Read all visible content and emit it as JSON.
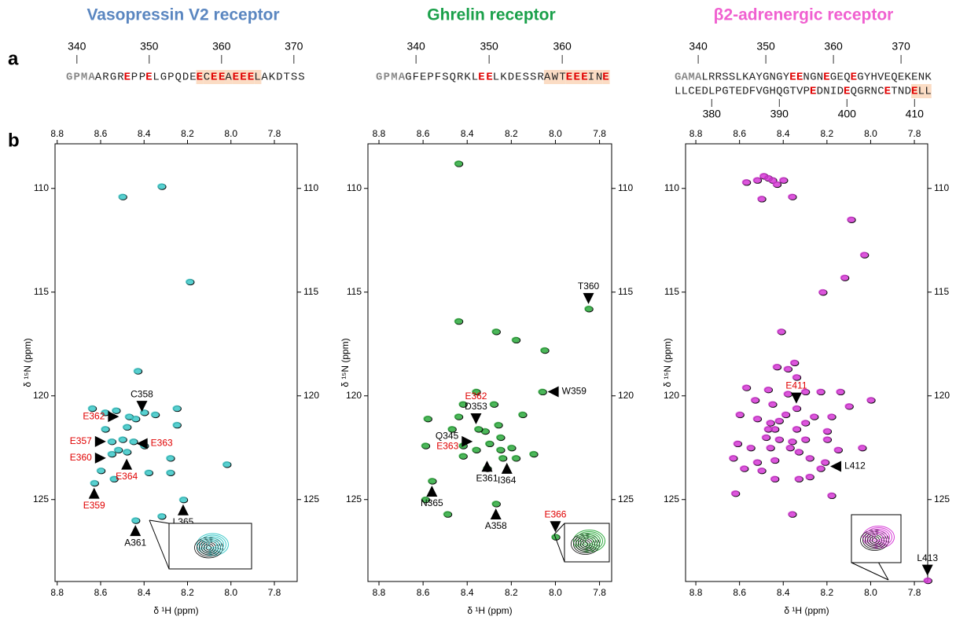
{
  "panel_labels": [
    "a",
    "b"
  ],
  "chart_data": [
    {
      "type": "scatter",
      "title": "Vasopressin V2 receptor",
      "title_color": "#5a86c0",
      "color": "#3cc8c8",
      "sequence": {
        "lines": [
          {
            "axis_side": "top",
            "xlim": [
              339,
              371
            ],
            "xticks": [
              340,
              350,
              360,
              370
            ],
            "segments": [
              {
                "text": "GPMA",
                "style": "tag",
                "highlight": false
              },
              {
                "text": "ARGR",
                "style": "plain",
                "highlight": false
              },
              {
                "text": "E",
                "style": "glu",
                "highlight": false
              },
              {
                "text": "PP",
                "style": "plain",
                "highlight": false
              },
              {
                "text": "E",
                "style": "glu",
                "highlight": false
              },
              {
                "text": "LGPQDE",
                "style": "plain",
                "highlight": false
              },
              {
                "text": "E",
                "style": "glu",
                "highlight": true
              },
              {
                "text": "C",
                "style": "plain",
                "highlight": true
              },
              {
                "text": "EE",
                "style": "glu",
                "highlight": true
              },
              {
                "text": "A",
                "style": "plain",
                "highlight": true
              },
              {
                "text": "EEE",
                "style": "glu",
                "highlight": true
              },
              {
                "text": "L",
                "style": "plain",
                "highlight": true
              },
              {
                "text": "AKDTSS",
                "style": "plain",
                "highlight": false
              }
            ]
          }
        ]
      },
      "xlabel": "δ ¹H (ppm)",
      "ylabel": "δ ¹⁵N (ppm)",
      "xreverse": true,
      "yreverse": true,
      "xlim": [
        7.695,
        8.81
      ],
      "ylim": [
        107.85,
        128.95
      ],
      "xticks": [
        8.8,
        8.6,
        8.4,
        8.2,
        {
          "value": 8,
          "label": "8.0"
        },
        7.8
      ],
      "yticks": [
        110,
        115,
        120,
        125
      ],
      "x": [
        8.5,
        8.32,
        8.19,
        8.43,
        8.64,
        8.58,
        8.53,
        8.47,
        8.44,
        8.4,
        8.35,
        8.25,
        8.58,
        8.48,
        8.25,
        8.55,
        8.5,
        8.45,
        8.52,
        8.48,
        8.55,
        8.4,
        8.28,
        8.6,
        8.38,
        8.28,
        8.02,
        8.63,
        8.54,
        8.22,
        8.32,
        8.44
      ],
      "y": [
        110.4,
        109.9,
        114.5,
        118.8,
        120.6,
        120.8,
        120.7,
        121.0,
        121.1,
        120.8,
        120.9,
        120.6,
        121.6,
        121.5,
        121.4,
        122.2,
        122.1,
        122.2,
        122.6,
        122.7,
        122.8,
        122.4,
        123.0,
        123.6,
        123.7,
        123.7,
        123.3,
        124.2,
        124.0,
        125.0,
        125.8,
        126.0
      ],
      "annotations": [
        {
          "x": 8.49,
          "y": 121.0,
          "dir": "right",
          "labels": [
            {
              "text": "E362",
              "color": "red"
            }
          ]
        },
        {
          "x": 8.41,
          "y": 121.0,
          "dir": "down",
          "labels": [
            {
              "text": "C358",
              "color": "black"
            }
          ]
        },
        {
          "x": 8.55,
          "y": 122.2,
          "dir": "right",
          "labels": [
            {
              "text": "E357",
              "color": "red"
            }
          ]
        },
        {
          "x": 8.46,
          "y": 122.3,
          "dir": "left",
          "labels": [
            {
              "text": "E363",
              "color": "red"
            }
          ]
        },
        {
          "x": 8.55,
          "y": 123.0,
          "dir": "right",
          "labels": [
            {
              "text": "E360",
              "color": "red"
            }
          ]
        },
        {
          "x": 8.48,
          "y": 122.8,
          "dir": "up",
          "labels": [
            {
              "text": "E364",
              "color": "red"
            }
          ]
        },
        {
          "x": 8.63,
          "y": 124.2,
          "dir": "up",
          "labels": [
            {
              "text": "E359",
              "color": "red"
            }
          ]
        },
        {
          "x": 8.22,
          "y": 125.0,
          "dir": "up",
          "labels": [
            {
              "text": "L365",
              "color": "black"
            }
          ]
        },
        {
          "x": 8.44,
          "y": 126.0,
          "dir": "up",
          "labels": [
            {
              "text": "A361",
              "color": "black"
            }
          ]
        }
      ]
    },
    {
      "type": "scatter",
      "title": "Ghrelin receptor",
      "title_color": "#1aa04a",
      "color": "#2eaa3e",
      "sequence": {
        "lines": [
          {
            "axis_side": "top",
            "xlim": [
              335,
              366
            ],
            "xticks": [
              340,
              350,
              360
            ],
            "segments": [
              {
                "text": "GPMA",
                "style": "tag",
                "highlight": false
              },
              {
                "text": "GFEPFSQRKL",
                "style": "plain",
                "highlight": false
              },
              {
                "text": "EE",
                "style": "glu",
                "highlight": false
              },
              {
                "text": "LKDESSR",
                "style": "plain",
                "highlight": false
              },
              {
                "text": "AWT",
                "style": "plain",
                "highlight": true
              },
              {
                "text": "EEE",
                "style": "glu",
                "highlight": true
              },
              {
                "text": "IN",
                "style": "plain",
                "highlight": true
              },
              {
                "text": "E",
                "style": "glu",
                "highlight": true
              }
            ]
          }
        ]
      },
      "xlabel": "δ ¹H (ppm)",
      "ylabel": "δ ¹⁵N (ppm)",
      "xreverse": true,
      "yreverse": true,
      "xlim": [
        7.745,
        8.85
      ],
      "ylim": [
        107.85,
        128.95
      ],
      "xticks": [
        8.8,
        8.6,
        8.4,
        8.2,
        {
          "value": 8,
          "label": "8.0"
        },
        7.8
      ],
      "yticks": [
        110,
        115,
        120,
        125
      ],
      "x": [
        8.44,
        8.44,
        8.27,
        8.18,
        8.05,
        7.85,
        8.58,
        8.44,
        8.36,
        8.42,
        8.28,
        8.15,
        8.06,
        8.32,
        8.26,
        8.35,
        8.47,
        8.59,
        8.42,
        8.3,
        8.25,
        8.25,
        8.2,
        8.31,
        8.24,
        8.18,
        8.1,
        8.42,
        8.36,
        8.56,
        8.59,
        8.49,
        8.27,
        8.0
      ],
      "y": [
        108.8,
        116.4,
        116.9,
        117.3,
        117.8,
        115.8,
        121.1,
        121.0,
        119.8,
        120.4,
        120.4,
        120.9,
        119.8,
        121.7,
        121.4,
        121.6,
        121.6,
        122.4,
        122.4,
        122.3,
        122.0,
        122.6,
        122.5,
        123.5,
        123.0,
        123.0,
        122.8,
        122.9,
        122.6,
        124.1,
        125.0,
        125.7,
        125.2,
        126.8
      ],
      "annotations": [
        {
          "x": 7.85,
          "y": 115.8,
          "dir": "down",
          "labels": [
            {
              "text": "T360",
              "color": "black"
            }
          ]
        },
        {
          "x": 8.06,
          "y": 119.8,
          "dir": "left",
          "labels": [
            {
              "text": "W359",
              "color": "black"
            }
          ]
        },
        {
          "x": 8.36,
          "y": 121.6,
          "dir": "down",
          "labels": [
            {
              "text": "E362",
              "color": "red"
            },
            {
              "text": "D353",
              "color": "black"
            }
          ]
        },
        {
          "x": 8.35,
          "y": 122.2,
          "dir": "right",
          "labels": [
            {
              "text": "Q345",
              "color": "black"
            },
            {
              "text": "E363",
              "color": "red"
            }
          ]
        },
        {
          "x": 8.31,
          "y": 122.9,
          "dir": "up",
          "labels": [
            {
              "text": "E361",
              "color": "black"
            }
          ]
        },
        {
          "x": 8.22,
          "y": 123.0,
          "dir": "up",
          "labels": [
            {
              "text": "I364",
              "color": "black"
            }
          ]
        },
        {
          "x": 8.56,
          "y": 124.1,
          "dir": "up",
          "labels": [
            {
              "text": "N365",
              "color": "black"
            }
          ]
        },
        {
          "x": 8.27,
          "y": 125.2,
          "dir": "up",
          "labels": [
            {
              "text": "A358",
              "color": "black"
            }
          ]
        },
        {
          "x": 8.0,
          "y": 126.8,
          "dir": "down",
          "labels": [
            {
              "text": "E366",
              "color": "red"
            }
          ]
        }
      ]
    },
    {
      "type": "scatter",
      "title": "β2-adrenergic receptor",
      "title_color": "#f060d0",
      "color": "#d63ad6",
      "sequence": {
        "lines": [
          {
            "axis_side": "top",
            "xlim": [
              337,
              374
            ],
            "xticks": [
              340,
              350,
              360,
              370
            ],
            "segments": [
              {
                "text": "GAMA",
                "style": "tag",
                "highlight": false
              },
              {
                "text": "LRRSSLKAYGNGY",
                "style": "plain",
                "highlight": false
              },
              {
                "text": "EE",
                "style": "glu",
                "highlight": false
              },
              {
                "text": "NGN",
                "style": "plain",
                "highlight": false
              },
              {
                "text": "E",
                "style": "glu",
                "highlight": false
              },
              {
                "text": "GEQ",
                "style": "plain",
                "highlight": false
              },
              {
                "text": "E",
                "style": "glu",
                "highlight": false
              },
              {
                "text": "GYHVEQEKENK",
                "style": "plain",
                "highlight": false
              }
            ]
          },
          {
            "axis_side": "bottom",
            "xlim": [
              375,
              412
            ],
            "xticks": [
              380,
              390,
              400,
              410
            ],
            "segments": [
              {
                "text": "LLCEDLPGTEDFVGHQGTVP",
                "style": "plain",
                "highlight": false
              },
              {
                "text": "E",
                "style": "glu",
                "highlight": false
              },
              {
                "text": "DNID",
                "style": "plain",
                "highlight": false
              },
              {
                "text": "E",
                "style": "glu",
                "highlight": false
              },
              {
                "text": "QGRNC",
                "style": "plain",
                "highlight": false
              },
              {
                "text": "E",
                "style": "glu",
                "highlight": false
              },
              {
                "text": "TND",
                "style": "plain",
                "highlight": false
              },
              {
                "text": "E",
                "style": "glu",
                "highlight": true
              },
              {
                "text": "LL",
                "style": "plain",
                "highlight": true
              }
            ]
          }
        ]
      },
      "xlabel": "δ ¹H (ppm)",
      "ylabel": "δ ¹⁵N (ppm)",
      "xreverse": true,
      "yreverse": true,
      "xlim": [
        7.739,
        8.847
      ],
      "ylim": [
        107.85,
        128.95
      ],
      "xticks": [
        8.8,
        8.6,
        8.4,
        8.2,
        {
          "value": 8,
          "label": "8.0"
        },
        7.8
      ],
      "yticks": [
        110,
        115,
        120,
        125
      ],
      "x": [
        8.49,
        8.47,
        8.45,
        8.52,
        8.4,
        8.57,
        8.43,
        8.5,
        8.36,
        8.09,
        8.03,
        8.12,
        8.22,
        8.41,
        8.43,
        8.38,
        8.35,
        8.34,
        8.57,
        8.47,
        8.38,
        8.3,
        8.23,
        8.14,
        8.0,
        8.53,
        8.45,
        8.34,
        8.1,
        8.6,
        8.52,
        8.46,
        8.42,
        8.39,
        8.3,
        8.26,
        8.18,
        8.47,
        8.44,
        8.34,
        8.2,
        8.48,
        8.42,
        8.36,
        8.3,
        8.2,
        8.61,
        8.55,
        8.46,
        8.37,
        8.33,
        8.15,
        8.04,
        8.63,
        8.52,
        8.44,
        8.28,
        8.21,
        8.23,
        8.58,
        8.5,
        8.33,
        8.44,
        8.28,
        8.62,
        8.18,
        8.36,
        7.74
      ],
      "y": [
        109.4,
        109.5,
        109.6,
        109.6,
        109.6,
        109.7,
        109.8,
        110.5,
        110.4,
        111.5,
        113.2,
        114.3,
        115.0,
        116.9,
        118.6,
        118.7,
        118.4,
        119.1,
        119.6,
        119.7,
        119.9,
        119.8,
        119.8,
        119.8,
        120.2,
        120.2,
        120.4,
        120.6,
        120.5,
        120.9,
        121.1,
        121.3,
        121.2,
        120.9,
        121.3,
        121.0,
        121.0,
        121.6,
        121.6,
        121.6,
        121.7,
        122.0,
        122.1,
        122.2,
        122.1,
        122.1,
        122.3,
        122.5,
        122.5,
        122.5,
        122.7,
        122.6,
        122.5,
        123.0,
        123.2,
        123.1,
        123.0,
        123.2,
        123.5,
        123.5,
        123.6,
        124.0,
        124.0,
        123.9,
        124.7,
        124.8,
        125.7,
        128.9
      ],
      "annotations": [
        {
          "x": 8.34,
          "y": 120.6,
          "dir": "down",
          "labels": [
            {
              "text": "E411",
              "color": "red"
            }
          ]
        },
        {
          "x": 8.21,
          "y": 123.4,
          "dir": "left",
          "labels": [
            {
              "text": "L412",
              "color": "black"
            }
          ]
        },
        {
          "x": 7.74,
          "y": 128.9,
          "dir": "down",
          "labels": [
            {
              "text": "L413",
              "color": "black"
            }
          ]
        }
      ]
    }
  ]
}
